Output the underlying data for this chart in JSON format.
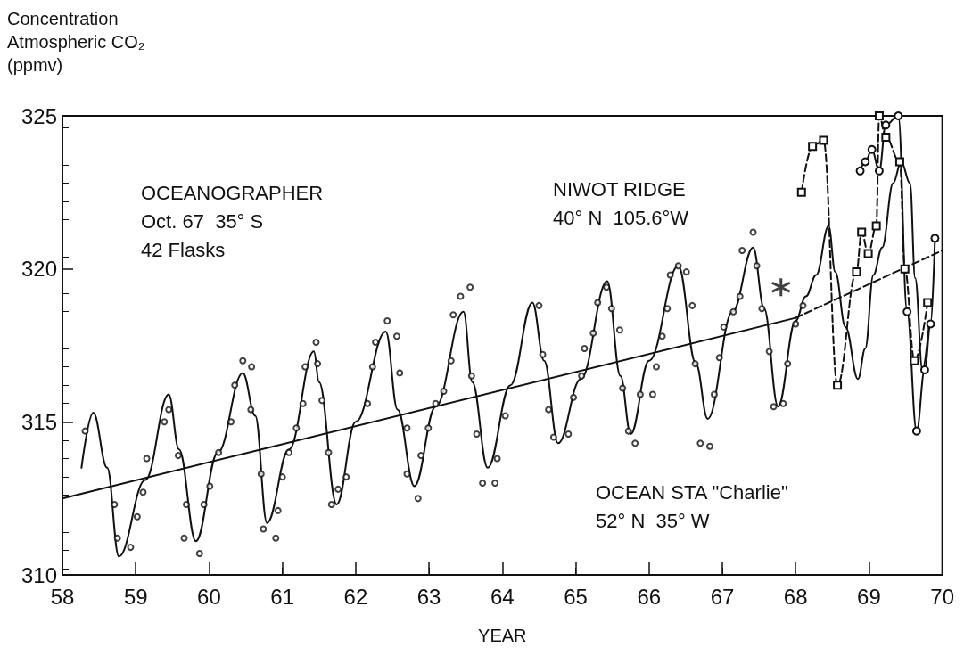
{
  "chart_data": {
    "type": "line",
    "ylabel": "Concentration\nAtmospheric CO₂\n(ppmv)",
    "xlabel": "YEAR",
    "xlim": [
      58,
      70
    ],
    "xticks": [
      58,
      59,
      60,
      61,
      62,
      63,
      64,
      65,
      66,
      67,
      68,
      69,
      70
    ],
    "ylim": [
      310,
      325
    ],
    "yticks": [
      310,
      315,
      320,
      325
    ],
    "grid": false,
    "annotations": [
      "OCEANOGRAPHER\nOct. 67  35° S\n42 Flasks",
      "NIWOT RIDGE\n40° N  105.6°W",
      "OCEAN STA \"Charlie\"\n52° N  35° W"
    ],
    "series": [
      {
        "color": "#111111",
        "marker": "none",
        "line_style": "solid",
        "x": [
          58.26,
          58.42,
          58.61,
          58.77,
          59.13,
          59.45,
          59.59,
          59.82,
          60.12,
          60.46,
          60.63,
          60.79,
          61.09,
          61.43,
          61.5,
          61.74,
          62.0,
          62.41,
          62.57,
          62.8,
          63.09,
          63.47,
          63.59,
          63.8,
          64.11,
          64.41,
          64.57,
          64.76,
          65.07,
          65.43,
          65.61,
          65.75,
          66.0,
          66.4,
          66.64,
          66.8,
          67.14,
          67.42,
          67.57,
          67.76,
          68.0,
          68.14,
          68.28,
          68.45,
          68.54,
          68.68,
          68.85,
          68.95,
          69.06,
          69.18,
          69.33,
          69.44,
          69.56,
          69.63,
          69.73,
          69.82
        ],
        "values": [
          313.5,
          315.3,
          313.5,
          310.6,
          313.1,
          315.9,
          314.1,
          311.1,
          314.0,
          316.6,
          315.2,
          311.7,
          314.1,
          317.3,
          316.3,
          312.3,
          315.0,
          317.95,
          315.4,
          312.9,
          315.5,
          318.6,
          316.3,
          313.5,
          316.2,
          318.9,
          317.0,
          314.3,
          316.4,
          319.6,
          316.5,
          314.6,
          317.0,
          320.1,
          316.9,
          315.1,
          318.6,
          320.7,
          318.7,
          315.5,
          318.3,
          319.1,
          319.8,
          321.4,
          319.9,
          318.1,
          316.4,
          317.4,
          319.8,
          320.7,
          322.8,
          323.5,
          322.8,
          319.7,
          316.7,
          318.2
        ]
      },
      {
        "type": "scatter",
        "color": "#111111",
        "marker": "circle",
        "x": [
          58.31,
          58.71,
          58.75,
          58.93,
          59.02,
          59.1,
          59.15,
          59.39,
          59.45,
          59.58,
          59.69,
          59.66,
          59.87,
          59.93,
          60.01,
          60.13,
          60.3,
          60.35,
          60.46,
          60.58,
          60.57,
          60.71,
          60.74,
          60.91,
          60.94,
          61.0,
          61.09,
          61.19,
          61.28,
          61.31,
          61.46,
          61.48,
          61.54,
          61.63,
          61.67,
          61.76,
          61.87,
          62.16,
          62.27,
          62.23,
          62.43,
          62.56,
          62.6,
          62.7,
          62.7,
          62.85,
          62.89,
          62.99,
          63.09,
          63.2,
          63.3,
          63.33,
          63.43,
          63.56,
          63.58,
          63.65,
          63.73,
          63.9,
          63.93,
          64.04,
          64.5,
          64.55,
          64.63,
          64.7,
          64.9,
          64.97,
          65.08,
          65.12,
          65.24,
          65.3,
          65.42,
          65.49,
          65.6,
          65.64,
          65.72,
          65.81,
          65.88,
          66.05,
          66.1,
          66.18,
          66.25,
          66.29,
          66.4,
          66.51,
          66.59,
          66.63,
          66.7,
          66.83,
          66.89,
          66.96,
          67.02,
          67.15,
          67.24,
          67.27,
          67.42,
          67.47,
          67.54,
          67.64,
          67.7,
          67.83,
          67.89,
          68.0,
          68.1
        ],
        "values": [
          314.7,
          312.3,
          311.2,
          310.9,
          311.9,
          312.7,
          313.8,
          315.0,
          315.4,
          313.9,
          312.3,
          311.2,
          310.7,
          312.3,
          312.9,
          314.0,
          315.0,
          316.2,
          317.0,
          316.8,
          315.4,
          313.3,
          311.5,
          311.2,
          312.1,
          313.2,
          314.0,
          314.8,
          315.6,
          316.8,
          317.6,
          316.9,
          315.7,
          314.0,
          312.3,
          312.8,
          313.2,
          315.6,
          317.6,
          316.8,
          318.3,
          317.8,
          316.6,
          314.8,
          313.3,
          312.5,
          313.9,
          314.8,
          315.6,
          316.0,
          317.0,
          318.5,
          319.1,
          319.4,
          316.5,
          314.6,
          313.0,
          313.0,
          313.8,
          315.2,
          318.8,
          317.2,
          315.4,
          314.5,
          314.6,
          315.8,
          316.5,
          317.4,
          317.9,
          318.9,
          319.4,
          318.7,
          318.0,
          316.1,
          314.7,
          314.3,
          315.9,
          315.9,
          316.8,
          317.8,
          318.7,
          319.8,
          320.1,
          319.9,
          318.8,
          316.9,
          314.3,
          314.2,
          315.9,
          317.1,
          318.1,
          318.6,
          319.1,
          320.6,
          321.2,
          320.1,
          318.7,
          317.3,
          315.5,
          315.6,
          316.9,
          318.2,
          318.8
        ]
      },
      {
        "color": "#111111",
        "marker": "circle",
        "line_style": "solid",
        "x": [
          68.88,
          68.95,
          69.04,
          69.14,
          69.23,
          69.4,
          69.52,
          69.65,
          69.76,
          69.84,
          69.9
        ],
        "values": [
          323.2,
          323.5,
          323.9,
          323.2,
          324.7,
          325.0,
          318.6,
          314.7,
          316.7,
          318.2,
          321.0
        ]
      },
      {
        "color": "#111111",
        "marker": "square",
        "line_style": "dashed",
        "x": [
          68.08,
          68.23,
          68.38,
          68.57,
          68.83,
          68.9,
          68.99,
          69.1,
          69.14,
          69.23,
          69.42,
          69.49,
          69.62,
          69.8
        ],
        "values": [
          322.5,
          324.0,
          324.2,
          316.2,
          319.9,
          321.2,
          320.5,
          321.4,
          325.0,
          324.3,
          323.5,
          320.0,
          317.0,
          318.9
        ]
      },
      {
        "color": "#111111",
        "marker": "none",
        "line_style": "solid",
        "x": [
          58,
          68
        ],
        "values": [
          312.5,
          318.4
        ]
      },
      {
        "color": "#111111",
        "marker": "none",
        "line_style": "dashed",
        "x": [
          68,
          70
        ],
        "values": [
          318.4,
          320.6
        ]
      },
      {
        "type": "scatter",
        "color": "#111111",
        "marker": "cross",
        "x": [
          67.8
        ],
        "values": [
          319.4
        ]
      }
    ]
  }
}
